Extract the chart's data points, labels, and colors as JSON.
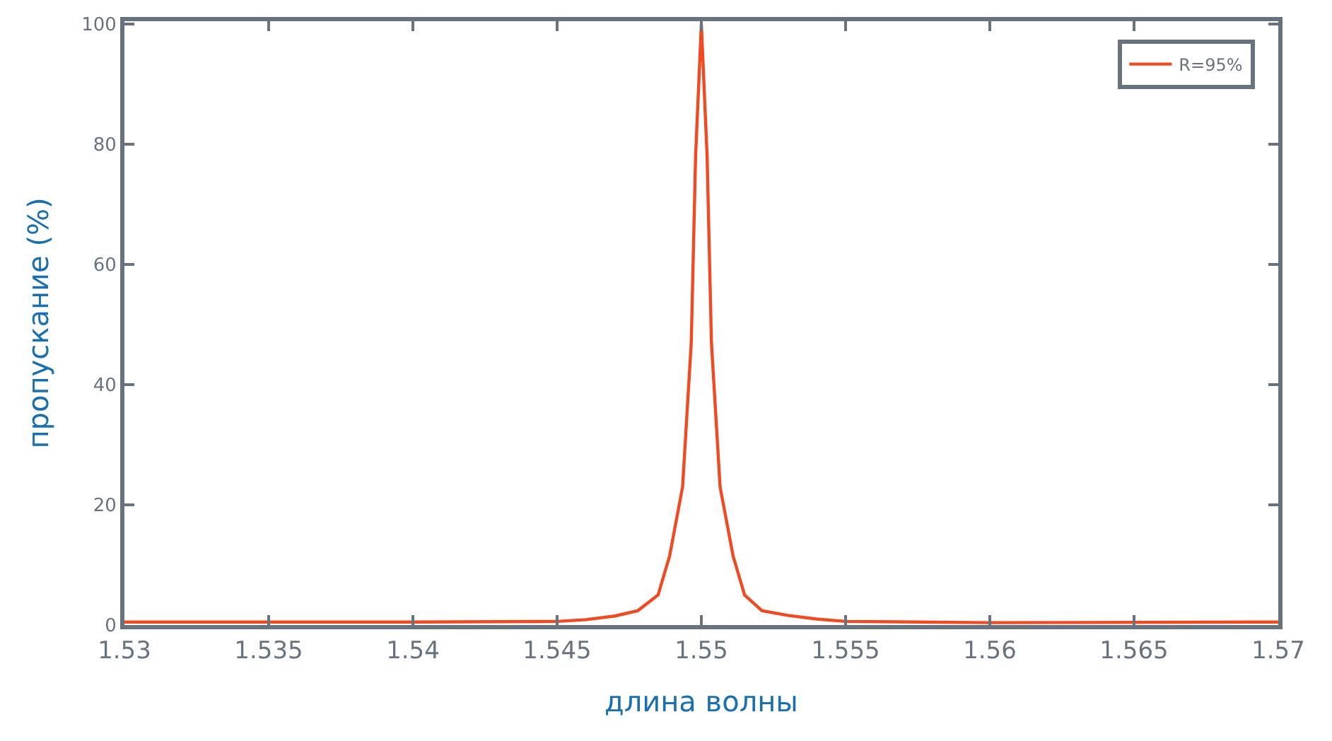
{
  "chart_data": {
    "type": "line",
    "xlabel": "длина волны",
    "ylabel": "пропускание (%)",
    "x": [
      1.53,
      1.54,
      1.545,
      1.546,
      1.547,
      1.5478,
      1.5485,
      1.5489,
      1.54935,
      1.54965,
      1.5498,
      1.55,
      1.5502,
      1.55035,
      1.55065,
      1.5511,
      1.5515,
      1.5521,
      1.553,
      1.554,
      1.555,
      1.56,
      1.57
    ],
    "series": [
      {
        "name": "R=95%",
        "color": "#f04a23",
        "values": [
          0.5,
          0.5,
          0.6,
          0.9,
          1.5,
          2.4,
          5,
          11.5,
          23,
          47,
          78,
          100,
          78,
          47,
          23,
          11.5,
          5,
          2.4,
          1.6,
          1,
          0.6,
          0.4,
          0.5
        ]
      }
    ],
    "xlim": [
      1.53,
      1.57
    ],
    "xticks": [
      1.53,
      1.535,
      1.54,
      1.545,
      1.55,
      1.555,
      1.56,
      1.565,
      1.57
    ],
    "ylim": [
      0,
      100.5
    ],
    "yticks": [
      0,
      20,
      40,
      60,
      80,
      100
    ],
    "grid": false,
    "legend": "top right",
    "marker": "none",
    "line_style": "solid"
  }
}
